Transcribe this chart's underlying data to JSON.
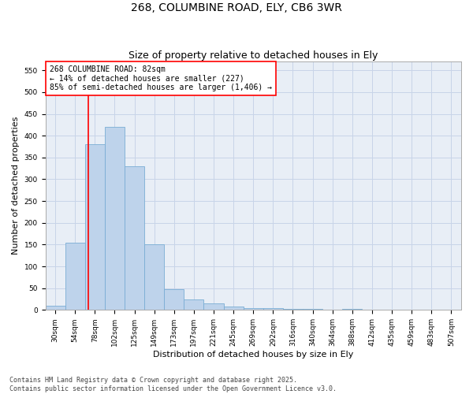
{
  "title1": "268, COLUMBINE ROAD, ELY, CB6 3WR",
  "title2": "Size of property relative to detached houses in Ely",
  "xlabel": "Distribution of detached houses by size in Ely",
  "ylabel": "Number of detached properties",
  "bins": [
    "30sqm",
    "54sqm",
    "78sqm",
    "102sqm",
    "125sqm",
    "149sqm",
    "173sqm",
    "197sqm",
    "221sqm",
    "245sqm",
    "269sqm",
    "292sqm",
    "316sqm",
    "340sqm",
    "364sqm",
    "388sqm",
    "412sqm",
    "435sqm",
    "459sqm",
    "483sqm",
    "507sqm"
  ],
  "bar_values": [
    10,
    155,
    380,
    420,
    330,
    150,
    47,
    25,
    15,
    8,
    5,
    4,
    3,
    2,
    0,
    2,
    0,
    1,
    0,
    1,
    1
  ],
  "bar_color": "#bed3eb",
  "bar_edge_color": "#7aadd4",
  "grid_color": "#c8d4e8",
  "background_color": "#e8eef6",
  "vline_color": "red",
  "annotation_text": "268 COLUMBINE ROAD: 82sqm\n← 14% of detached houses are smaller (227)\n85% of semi-detached houses are larger (1,406) →",
  "annotation_box_color": "white",
  "annotation_box_edge_color": "red",
  "ylim": [
    0,
    570
  ],
  "yticks": [
    0,
    50,
    100,
    150,
    200,
    250,
    300,
    350,
    400,
    450,
    500,
    550
  ],
  "footnote": "Contains HM Land Registry data © Crown copyright and database right 2025.\nContains public sector information licensed under the Open Government Licence v3.0.",
  "title_fontsize": 10,
  "subtitle_fontsize": 9,
  "tick_fontsize": 6.5,
  "ylabel_fontsize": 8,
  "xlabel_fontsize": 8,
  "annotation_fontsize": 7,
  "footnote_fontsize": 6
}
